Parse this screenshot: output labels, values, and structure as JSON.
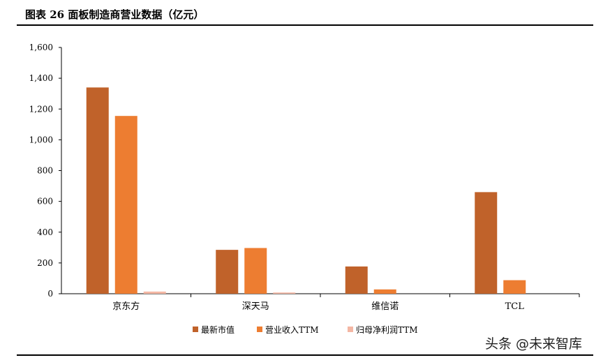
{
  "figure": {
    "title": "图表 26 面板制造商营业数据（亿元）"
  },
  "watermark": "头条 @未来智库",
  "chart_data": {
    "type": "bar",
    "categories": [
      "京东方",
      "深天马",
      "维信诺",
      "TCL"
    ],
    "series": [
      {
        "name": "最新市值",
        "color": "#C0622A",
        "values": [
          1340,
          285,
          177,
          660
        ]
      },
      {
        "name": "营业收入TTM",
        "color": "#ED7D31",
        "values": [
          1155,
          297,
          28,
          88
        ]
      },
      {
        "name": "归母净利润TTM",
        "color": "#F4B7A4",
        "values": [
          14,
          8,
          0,
          0
        ]
      }
    ],
    "ylim": [
      0,
      1600
    ],
    "yticks": [
      "0",
      "200",
      "400",
      "600",
      "800",
      "1,000",
      "1,200",
      "1,400",
      "1,600"
    ],
    "ytick_values": [
      0,
      200,
      400,
      600,
      800,
      1000,
      1200,
      1400,
      1600
    ],
    "legend_position": "bottom",
    "grid": false
  }
}
